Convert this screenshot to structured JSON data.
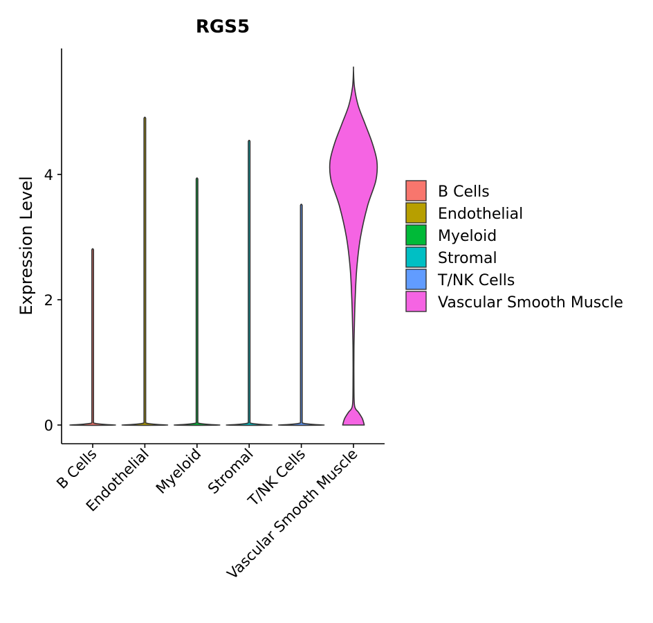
{
  "chart_data": {
    "type": "violin",
    "title": "RGS5",
    "xlabel": "",
    "ylabel": "Expression Level",
    "ylim": [
      -0.3,
      6.0
    ],
    "yticks": [
      0,
      2,
      4
    ],
    "categories": [
      "B Cells",
      "Endothelial",
      "Myeloid",
      "Stromal",
      "T/NK Cells",
      "Vascular Smooth Muscle"
    ],
    "colors": [
      "#F8766D",
      "#B79F00",
      "#00BA38",
      "#00BFC4",
      "#619CFF",
      "#F564E3"
    ],
    "max_values": [
      2.82,
      4.92,
      3.95,
      4.55,
      3.53,
      5.68
    ],
    "vsm_density": [
      {
        "y": 0.0,
        "w": 0.46
      },
      {
        "y": 0.1,
        "w": 0.38
      },
      {
        "y": 0.2,
        "w": 0.22
      },
      {
        "y": 0.3,
        "w": 0.05
      },
      {
        "y": 0.6,
        "w": 0.02
      },
      {
        "y": 1.2,
        "w": 0.02
      },
      {
        "y": 1.6,
        "w": 0.04
      },
      {
        "y": 2.0,
        "w": 0.07
      },
      {
        "y": 2.5,
        "w": 0.14
      },
      {
        "y": 3.0,
        "w": 0.3
      },
      {
        "y": 3.5,
        "w": 0.6
      },
      {
        "y": 3.9,
        "w": 0.95
      },
      {
        "y": 4.2,
        "w": 1.0
      },
      {
        "y": 4.5,
        "w": 0.8
      },
      {
        "y": 4.8,
        "w": 0.5
      },
      {
        "y": 5.1,
        "w": 0.2
      },
      {
        "y": 5.4,
        "w": 0.04
      },
      {
        "y": 5.68,
        "w": 0.0
      }
    ]
  },
  "legend": {
    "items": [
      {
        "label": "B Cells",
        "color": "#F8766D"
      },
      {
        "label": "Endothelial",
        "color": "#B79F00"
      },
      {
        "label": "Myeloid",
        "color": "#00BA38"
      },
      {
        "label": "Stromal",
        "color": "#00BFC4"
      },
      {
        "label": "T/NK Cells",
        "color": "#619CFF"
      },
      {
        "label": "Vascular Smooth Muscle",
        "color": "#F564E3"
      }
    ]
  }
}
